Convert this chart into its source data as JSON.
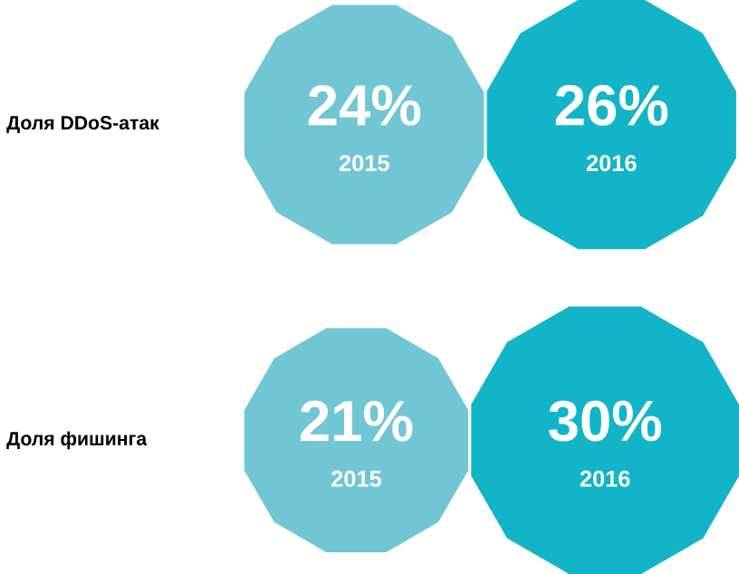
{
  "chart_data": [
    {
      "type": "other",
      "title": "Доля DDoS-атак",
      "categories": [
        "2015",
        "2016"
      ],
      "values": [
        24,
        26
      ],
      "value_labels": [
        "24%",
        "26%"
      ],
      "colors": [
        "#71c6d4",
        "#12b4c8"
      ]
    },
    {
      "type": "other",
      "title": "Доля фишинга",
      "categories": [
        "2015",
        "2016"
      ],
      "values": [
        21,
        30
      ],
      "value_labels": [
        "21%",
        "30%"
      ],
      "colors": [
        "#71c6d4",
        "#12b4c8"
      ]
    }
  ]
}
